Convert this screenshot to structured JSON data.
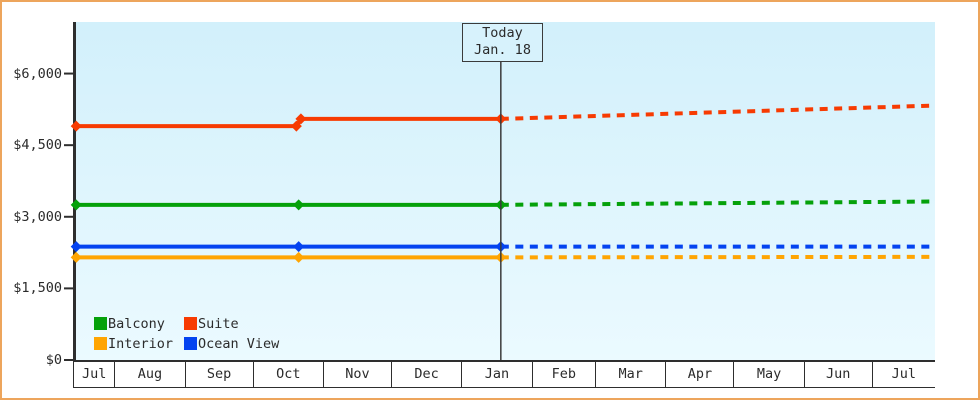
{
  "window": {
    "border_color": "#eda55c",
    "background_color": "#ffffff",
    "axis_color": "#2e2e2e",
    "text_color": "#2b2b2b"
  },
  "legend": {
    "items": [
      {
        "id": "balcony",
        "label": "Balcony",
        "color": "#05a10a"
      },
      {
        "id": "suite",
        "label": "Suite",
        "color": "#f73b02"
      },
      {
        "id": "interior",
        "label": "Interior",
        "color": "#ffa502"
      },
      {
        "id": "ocean-view",
        "label": "Ocean View",
        "color": "#0443f0"
      }
    ]
  },
  "chart_data": {
    "type": "line",
    "title": "",
    "plot_colors": {
      "top": "#d2f0fb",
      "bottom": "#ebfaff"
    },
    "x_axis": {
      "unit": "days-from-left-edge",
      "start_date": "Jul 13",
      "end_date": "Jul 28 (following year)",
      "month_labels": [
        "Jul",
        "Aug",
        "Sep",
        "Oct",
        "Nov",
        "Dec",
        "Jan",
        "Feb",
        "Mar",
        "Apr",
        "May",
        "Jun",
        "Jul"
      ],
      "month_boundaries_days": [
        0,
        18.65,
        49.65,
        79.65,
        110.65,
        140.65,
        171.65,
        202.65,
        230.65,
        261.65,
        291.65,
        322.65,
        352.65,
        380.1
      ]
    },
    "y_axis": {
      "max_value": 7080,
      "ticks": [
        {
          "label": "$6,000",
          "value": 6000
        },
        {
          "label": "$4,500",
          "value": 4500
        },
        {
          "label": "$3,000",
          "value": 3000
        },
        {
          "label": "$1,500",
          "value": 1500
        },
        {
          "label": "$0",
          "value": 0
        }
      ]
    },
    "today": {
      "label": "Today",
      "date": "Jan. 18",
      "day": 188.65
    },
    "series": [
      {
        "name": "Suite",
        "color": "#f73b02",
        "history": [
          {
            "day": 1.4,
            "date": "Jul 14",
            "value": 4900
          },
          {
            "day": 98.5,
            "date": "Oct 20",
            "value": 4900
          },
          {
            "day": 100.5,
            "date": "Oct 21",
            "value": 5050
          },
          {
            "day": 188.65,
            "date": "Jan 18",
            "value": 5050
          }
        ],
        "forecast": [
          {
            "day": 188.65,
            "date": "Jan 18",
            "value": 5050
          },
          {
            "day": 380.1,
            "date": "Jul 28",
            "value": 5330
          }
        ]
      },
      {
        "name": "Balcony",
        "color": "#05a10a",
        "history": [
          {
            "day": 1.4,
            "date": "Jul 14",
            "value": 3250
          },
          {
            "day": 99.5,
            "date": "Oct 21",
            "value": 3250
          },
          {
            "day": 188.65,
            "date": "Jan 18",
            "value": 3250
          }
        ],
        "forecast": [
          {
            "day": 188.65,
            "date": "Jan 18",
            "value": 3250
          },
          {
            "day": 380.1,
            "date": "Jul 28",
            "value": 3320
          }
        ]
      },
      {
        "name": "Ocean View",
        "color": "#0443f0",
        "history": [
          {
            "day": 1.4,
            "date": "Jul 14",
            "value": 2375
          },
          {
            "day": 99.5,
            "date": "Oct 21",
            "value": 2375
          },
          {
            "day": 188.65,
            "date": "Jan 18",
            "value": 2375
          }
        ],
        "forecast": [
          {
            "day": 188.65,
            "date": "Jan 18",
            "value": 2375
          },
          {
            "day": 380.1,
            "date": "Jul 28",
            "value": 2375
          }
        ]
      },
      {
        "name": "Interior",
        "color": "#ffa502",
        "history": [
          {
            "day": 1.4,
            "date": "Jul 14",
            "value": 2150
          },
          {
            "day": 99.5,
            "date": "Oct 21",
            "value": 2150
          },
          {
            "day": 188.65,
            "date": "Jan 18",
            "value": 2150
          }
        ],
        "forecast": [
          {
            "day": 188.65,
            "date": "Jan 18",
            "value": 2150
          },
          {
            "day": 380.1,
            "date": "Jul 28",
            "value": 2160
          }
        ]
      }
    ]
  }
}
